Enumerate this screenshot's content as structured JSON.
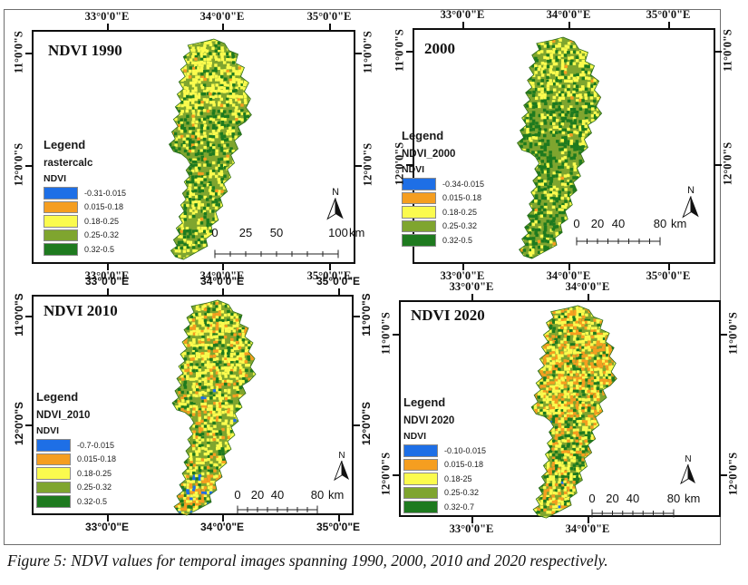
{
  "figure": {
    "caption": "Figure 5: NDVI values for temporal images spanning 1990, 2000, 2010 and 2020 respectively."
  },
  "colors": {
    "blue": "#1E6FE6",
    "orange": "#F59E20",
    "yellow": "#FBFB4E",
    "olive": "#7FA52F",
    "dark_green": "#1E7A1F"
  },
  "panels": [
    {
      "title": "NDVI 1990",
      "north_label": "N",
      "xlabels": [
        "33°0'0\"E",
        "34°0'0\"E",
        "35°0'0\"E"
      ],
      "ylabels": [
        "11°0'0\"S",
        "12°0'0\"S"
      ],
      "legend": {
        "title": "Legend",
        "subtitle": "rastercalc",
        "layer": "NDVI",
        "classes": [
          {
            "label": "-0.31-0.015",
            "color": "blue"
          },
          {
            "label": "0.015-0.18",
            "color": "orange"
          },
          {
            "label": "0.18-0.25",
            "color": "yellow"
          },
          {
            "label": "0.25-0.32",
            "color": "olive"
          },
          {
            "label": "0.32-0.5",
            "color": "dark_green"
          }
        ]
      },
      "scalebar": {
        "labels": [
          "0",
          "25",
          "50",
          "100"
        ],
        "unit": "km"
      },
      "raster": {
        "seed": 1990,
        "bands": [
          {
            "until": 0.3,
            "w": [
              0,
              0.03,
              0.46,
              0.37,
              0.14
            ]
          },
          {
            "until": 0.55,
            "w": [
              0,
              0.02,
              0.22,
              0.44,
              0.32
            ]
          },
          {
            "until": 1.01,
            "w": [
              0,
              0.03,
              0.3,
              0.43,
              0.24
            ]
          }
        ]
      }
    },
    {
      "title": "2000",
      "north_label": "N",
      "xlabels": [
        "33°0'0\"E",
        "34°0'0\"E",
        "35°0'0\"E"
      ],
      "ylabels": [
        "11°0'0\"S",
        "12°0'0\"S"
      ],
      "legend": {
        "title": "Legend",
        "subtitle": "NDVI_2000",
        "layer": "NDVI",
        "classes": [
          {
            "label": "-0.34-0.015",
            "color": "blue"
          },
          {
            "label": "0.015-0.18",
            "color": "orange"
          },
          {
            "label": "0.18-0.25",
            "color": "yellow"
          },
          {
            "label": "0.25-0.32",
            "color": "olive"
          },
          {
            "label": "0.32-0.5",
            "color": "dark_green"
          }
        ]
      },
      "scalebar": {
        "labels": [
          "0",
          "20",
          "40",
          "80"
        ],
        "unit": "km"
      },
      "raster": {
        "seed": 2000,
        "bands": [
          {
            "until": 0.28,
            "w": [
              0,
              0.02,
              0.38,
              0.42,
              0.18
            ]
          },
          {
            "until": 1.01,
            "w": [
              0,
              0.01,
              0.18,
              0.47,
              0.34
            ]
          }
        ]
      }
    },
    {
      "title": "NDVI 2010",
      "north_label": "N",
      "xlabels": [
        "33°0'0\"E",
        "34°0'0\"E",
        "35°0'0\"E"
      ],
      "ylabels": [
        "11°0'0\"S",
        "12°0'0\"S"
      ],
      "legend": {
        "title": "Legend",
        "subtitle": "NDVI_2010",
        "layer": "NDVI",
        "classes": [
          {
            "label": "-0.7-0.015",
            "color": "blue"
          },
          {
            "label": "0.015-0.18",
            "color": "orange"
          },
          {
            "label": "0.18-0.25",
            "color": "yellow"
          },
          {
            "label": "0.25-0.32",
            "color": "olive"
          },
          {
            "label": "0.32-0.5",
            "color": "dark_green"
          }
        ]
      },
      "scalebar": {
        "labels": [
          "0",
          "20",
          "40",
          "80"
        ],
        "unit": "km"
      },
      "raster": {
        "seed": 2010,
        "bands": [
          {
            "until": 0.35,
            "w": [
              0,
              0.1,
              0.4,
              0.36,
              0.14
            ]
          },
          {
            "until": 0.8,
            "w": [
              0.005,
              0.12,
              0.33,
              0.4,
              0.145
            ]
          },
          {
            "until": 1.01,
            "w": [
              0.15,
              0.3,
              0.27,
              0.2,
              0.08
            ]
          }
        ]
      }
    },
    {
      "title": "NDVI 2020",
      "north_label": "N",
      "xlabels": [
        "33°0'0\"E",
        "34°0'0\"E"
      ],
      "ylabels": [
        "11°0'0\"S",
        "12°0'0\"S"
      ],
      "legend": {
        "title": "Legend",
        "subtitle": "NDVI 2020",
        "layer": "NDVI",
        "classes": [
          {
            "label": "-0.10-0.015",
            "color": "blue"
          },
          {
            "label": "0.015-0.18",
            "color": "orange"
          },
          {
            "label": "0.18-25",
            "color": "yellow"
          },
          {
            "label": "0.25-0.32",
            "color": "olive"
          },
          {
            "label": "0.32-0.7",
            "color": "dark_green"
          }
        ]
      },
      "scalebar": {
        "labels": [
          "0",
          "20",
          "40",
          "80"
        ],
        "unit": "km"
      },
      "raster": {
        "seed": 2020,
        "bands": [
          {
            "until": 0.45,
            "w": [
              0,
              0.3,
              0.34,
              0.25,
              0.11
            ]
          },
          {
            "until": 1.01,
            "w": [
              0.005,
              0.2,
              0.33,
              0.3,
              0.165
            ]
          }
        ]
      }
    }
  ]
}
